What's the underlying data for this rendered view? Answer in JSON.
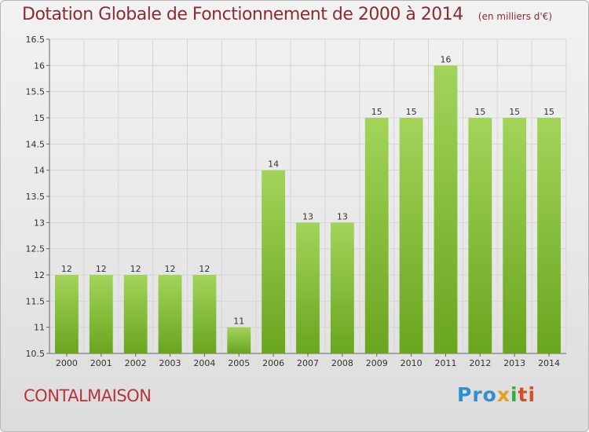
{
  "header": {
    "title": "Dotation Globale de Fonctionnement de 2000 à 2014",
    "subtitle": "(en milliers d'€)"
  },
  "footer": {
    "place": "CONTALMAISON",
    "logo_parts": [
      "Pro",
      "x",
      "i",
      "ti"
    ]
  },
  "colors": {
    "bar_light": "#a2d45a",
    "bar_dark": "#6aa51e",
    "title": "#8a2c34",
    "place": "#b8343b"
  },
  "chart_data": {
    "type": "bar",
    "title": "Dotation Globale de Fonctionnement de 2000 à 2014",
    "subtitle": "(en milliers d'€)",
    "categories": [
      "2000",
      "2001",
      "2002",
      "2003",
      "2004",
      "2005",
      "2006",
      "2007",
      "2008",
      "2009",
      "2010",
      "2011",
      "2012",
      "2013",
      "2014"
    ],
    "values": [
      12,
      12,
      12,
      12,
      12,
      11,
      14,
      13,
      13,
      15,
      15,
      16,
      15,
      15,
      15
    ],
    "value_labels": [
      "12",
      "12",
      "12",
      "12",
      "12",
      "11",
      "14",
      "13",
      "13",
      "15",
      "15",
      "16",
      "15",
      "15",
      "15"
    ],
    "ylim": [
      10.5,
      16.5
    ],
    "yticks": [
      10.5,
      11,
      11.5,
      12,
      12.5,
      13,
      13.5,
      14,
      14.5,
      15,
      15.5,
      16,
      16.5
    ],
    "ytick_labels": [
      "10.5",
      "11",
      "11.5",
      "12",
      "12.5",
      "13",
      "13.5",
      "14",
      "14.5",
      "15",
      "15.5",
      "16",
      "16.5"
    ],
    "grid": true,
    "xlabel": "",
    "ylabel": ""
  }
}
